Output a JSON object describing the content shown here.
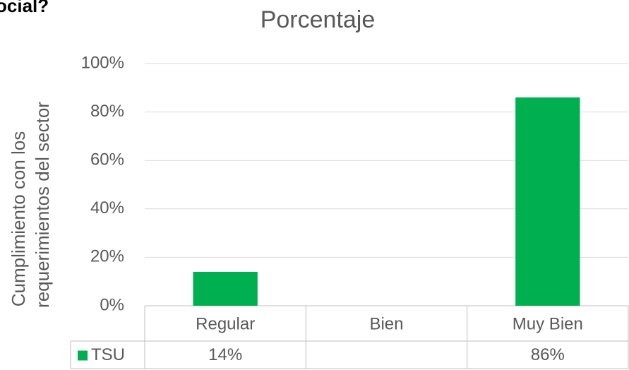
{
  "chart_data": {
    "type": "bar",
    "title": "Porcentaje",
    "annotations": [
      "ocial?"
    ],
    "ylabel": [
      "Cumplimiento con los",
      "requerimientos del sector"
    ],
    "categories": [
      "Regular",
      "Bien",
      "Muy Bien"
    ],
    "series": [
      {
        "name": "TSU",
        "color": "#00b050",
        "values": [
          14,
          null,
          86
        ],
        "value_labels": [
          "14%",
          null,
          "86%"
        ]
      }
    ],
    "ylim": [
      0,
      100
    ],
    "yticks": [
      {
        "value": 0,
        "label": "0%"
      },
      {
        "value": 20,
        "label": "20%"
      },
      {
        "value": 40,
        "label": "40%"
      },
      {
        "value": 60,
        "label": "60%"
      },
      {
        "value": 80,
        "label": "80%"
      },
      {
        "value": 100,
        "label": "100%"
      }
    ],
    "grid": true,
    "data_table": true
  }
}
